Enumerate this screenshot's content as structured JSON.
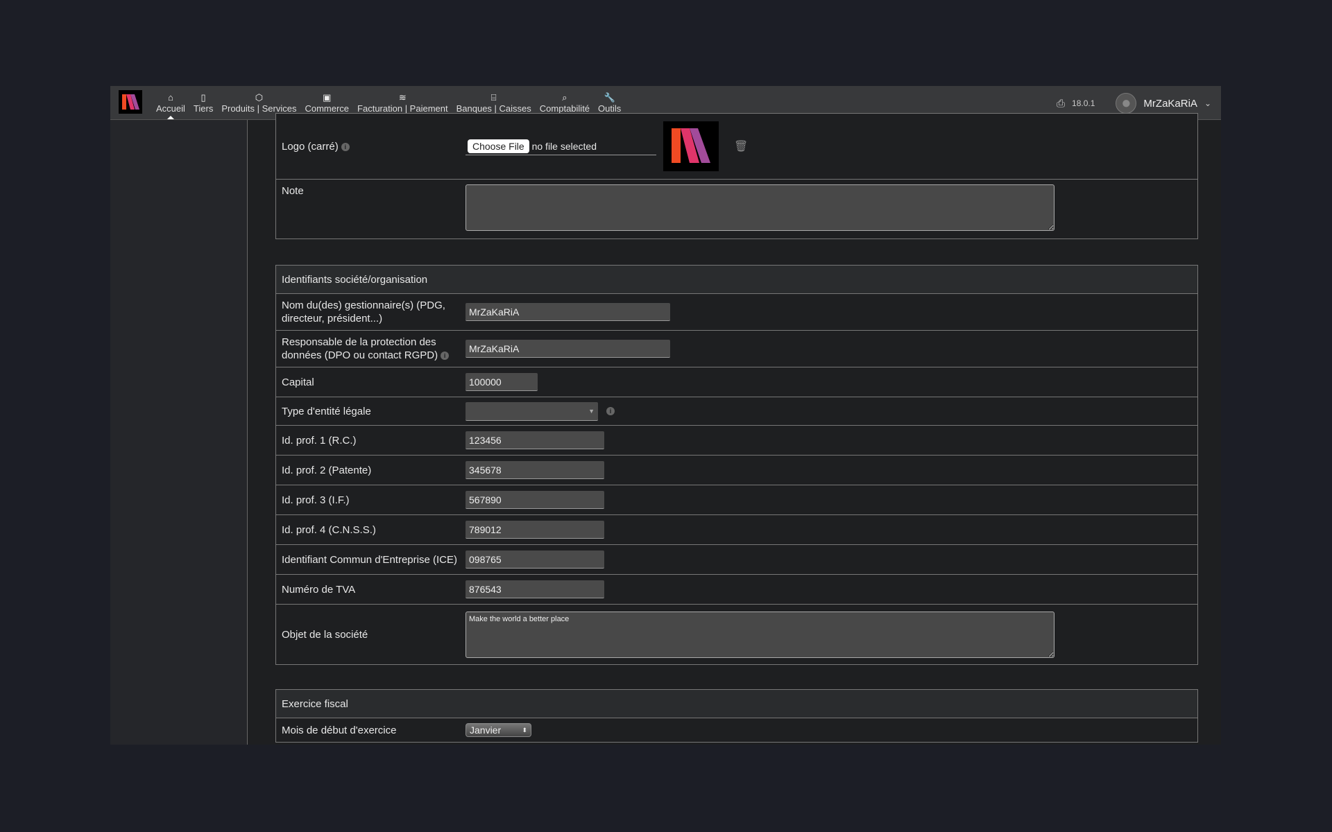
{
  "nav": {
    "items": [
      {
        "label": "Accueil",
        "icon": "home-icon",
        "glyph": "⌂",
        "active": true
      },
      {
        "label": "Tiers",
        "icon": "building-icon",
        "glyph": "▯"
      },
      {
        "label": "Produits | Services",
        "icon": "cube-icon",
        "glyph": "⬡"
      },
      {
        "label": "Commerce",
        "icon": "suitcase-icon",
        "glyph": "▣"
      },
      {
        "label": "Facturation | Paiement",
        "icon": "coins-icon",
        "glyph": "≋"
      },
      {
        "label": "Banques | Caisses",
        "icon": "bank-icon",
        "glyph": "⌸"
      },
      {
        "label": "Comptabilité",
        "icon": "search-dollar-icon",
        "glyph": "⌕"
      },
      {
        "label": "Outils",
        "icon": "wrench-icon",
        "glyph": "🔧"
      }
    ],
    "version": "18.0.1",
    "user": "MrZaKaRiA"
  },
  "logo_section": {
    "logo_label": "Logo (carré)",
    "choose_file": "Choose File",
    "no_file": "no file selected",
    "note_label": "Note",
    "note_value": ""
  },
  "ids_section": {
    "title": "Identifiants société/organisation",
    "rows": [
      {
        "label": "Nom du(des) gestionnaire(s) (PDG, directeur, président...)",
        "value": "MrZaKaRiA"
      },
      {
        "label": "Responsable de la protection des données (DPO ou contact RGPD)",
        "value": "MrZaKaRiA"
      },
      {
        "label": "Capital",
        "value": "100000"
      },
      {
        "label": "Type d'entité légale",
        "value": ""
      },
      {
        "label": "Id. prof. 1 (R.C.)",
        "value": "123456"
      },
      {
        "label": "Id. prof. 2 (Patente)",
        "value": "345678"
      },
      {
        "label": "Id. prof. 3 (I.F.)",
        "value": "567890"
      },
      {
        "label": "Id. prof. 4 (C.N.S.S.)",
        "value": "789012"
      },
      {
        "label": "Identifiant Commun d'Entreprise (ICE)",
        "value": "098765"
      },
      {
        "label": "Numéro de TVA",
        "value": "876543"
      },
      {
        "label": "Objet de la société",
        "value": "Make the world a better place"
      }
    ]
  },
  "fiscal_section": {
    "title": "Exercice fiscal",
    "label": "Mois de début d'exercice",
    "value": "Janvier"
  }
}
